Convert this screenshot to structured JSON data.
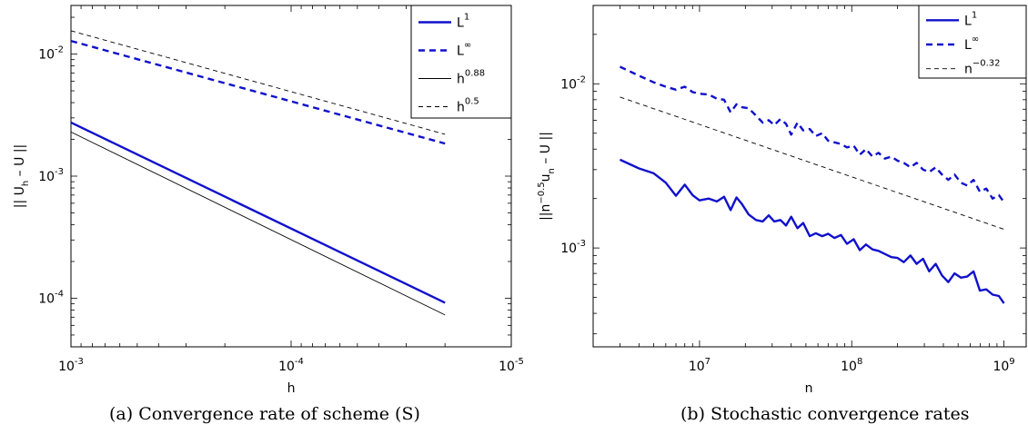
{
  "chart_data": [
    {
      "type": "line",
      "caption": "(a) Convergence rate of scheme (S)",
      "xlabel": "h",
      "ylabel": "|| U_h – U ||",
      "x_scale": "log",
      "y_scale": "log",
      "x_reversed": true,
      "xlim": [
        0.001,
        1e-05
      ],
      "ylim": [
        4e-05,
        0.025
      ],
      "x_ticks": [
        {
          "mantissa": "10",
          "exp": "-3",
          "value": 0.001
        },
        {
          "mantissa": "10",
          "exp": "-4",
          "value": 0.0001
        },
        {
          "mantissa": "10",
          "exp": "-5",
          "value": 1e-05
        }
      ],
      "y_ticks": [
        {
          "mantissa": "10",
          "exp": "-4",
          "value": 0.0001
        },
        {
          "mantissa": "10",
          "exp": "-3",
          "value": 0.001
        },
        {
          "mantissa": "10",
          "exp": "-2",
          "value": 0.01
        }
      ],
      "legend_position": "top-right",
      "series": [
        {
          "name": "L",
          "name_sup": "1",
          "color": "#1010cc",
          "style": "solid",
          "width": 2.4,
          "x": [
            0.001,
            2e-05
          ],
          "y": [
            0.00275,
            9.2e-05
          ]
        },
        {
          "name": "L",
          "name_sup": "∞",
          "color": "#1010cc",
          "style": "dashed",
          "width": 2.4,
          "x": [
            0.001,
            2e-05
          ],
          "y": [
            0.0128,
            0.00185
          ]
        },
        {
          "name": "h",
          "name_sup": "0.88",
          "color": "#000000",
          "style": "solid",
          "width": 0.9,
          "x": [
            0.001,
            2e-05
          ],
          "y": [
            0.0023,
            7.3e-05
          ]
        },
        {
          "name": "h",
          "name_sup": "0.5",
          "color": "#000000",
          "style": "dashed",
          "width": 0.9,
          "x": [
            0.001,
            2e-05
          ],
          "y": [
            0.0155,
            0.0022
          ]
        }
      ]
    },
    {
      "type": "line",
      "caption": "(b) Stochastic convergence rates",
      "xlabel": "n",
      "ylabel": "||n^{-0.5}u_n – U ||",
      "x_scale": "log",
      "y_scale": "log",
      "xlim": [
        2000000,
        1400000000
      ],
      "ylim": [
        0.00025,
        0.03
      ],
      "x_ticks": [
        {
          "mantissa": "10",
          "exp": "7",
          "value": 10000000
        },
        {
          "mantissa": "10",
          "exp": "8",
          "value": 100000000
        },
        {
          "mantissa": "10",
          "exp": "9",
          "value": 1000000000
        }
      ],
      "y_ticks": [
        {
          "mantissa": "10",
          "exp": "-3",
          "value": 0.001
        },
        {
          "mantissa": "10",
          "exp": "-2",
          "value": 0.01
        }
      ],
      "legend_position": "top-right",
      "series": [
        {
          "name": "L",
          "name_sup": "1",
          "color": "#1010cc",
          "style": "solid",
          "width": 2.4,
          "x": [
            3000000,
            4000000,
            5000000,
            6000000,
            7000000,
            8000000,
            9000000,
            10000000,
            11500000,
            13000000,
            14500000,
            16000000,
            17500000,
            19000000,
            21000000,
            23500000,
            26000000,
            28500000,
            31000000,
            34000000,
            37000000,
            40000000,
            44000000,
            48000000,
            53000000,
            58000000,
            64000000,
            70000000,
            77000000,
            85000000,
            93000000,
            103000000,
            113000000,
            124000000,
            137000000,
            150000000,
            165000000,
            182000000,
            200000000,
            220000000,
            243000000,
            267000000,
            294000000,
            323000000,
            356000000,
            392000000,
            431000000,
            474000000,
            521000000,
            574000000,
            631000000,
            695000000,
            765000000,
            842000000,
            926000000,
            1000000000
          ],
          "y": [
            0.00345,
            0.00305,
            0.00285,
            0.0025,
            0.00208,
            0.00243,
            0.0021,
            0.00195,
            0.002,
            0.00192,
            0.00205,
            0.0017,
            0.00203,
            0.00185,
            0.0016,
            0.00148,
            0.00145,
            0.00158,
            0.00145,
            0.00148,
            0.00137,
            0.00155,
            0.00132,
            0.00142,
            0.00118,
            0.00123,
            0.00118,
            0.00122,
            0.00115,
            0.0012,
            0.00106,
            0.00113,
            0.00097,
            0.00105,
            0.00098,
            0.00096,
            0.00092,
            0.00088,
            0.00087,
            0.00082,
            0.0009,
            0.0008,
            0.00086,
            0.00072,
            0.0008,
            0.00068,
            0.00062,
            0.0007,
            0.00066,
            0.00067,
            0.00072,
            0.00055,
            0.00056,
            0.00052,
            0.00051,
            0.00046
          ]
        },
        {
          "name": "L",
          "name_sup": "∞",
          "color": "#1010cc",
          "style": "dashed",
          "width": 2.4,
          "x": [
            3000000,
            4000000,
            5000000,
            6000000,
            7000000,
            8000000,
            9000000,
            10000000,
            11500000,
            13000000,
            14500000,
            16000000,
            17500000,
            19000000,
            21000000,
            23500000,
            26000000,
            28500000,
            31000000,
            34000000,
            37000000,
            40000000,
            44000000,
            48000000,
            53000000,
            58000000,
            64000000,
            70000000,
            77000000,
            85000000,
            93000000,
            103000000,
            113000000,
            124000000,
            137000000,
            150000000,
            165000000,
            182000000,
            200000000,
            220000000,
            243000000,
            267000000,
            294000000,
            323000000,
            356000000,
            392000000,
            431000000,
            474000000,
            521000000,
            574000000,
            631000000,
            695000000,
            765000000,
            842000000,
            926000000,
            1000000000
          ],
          "y": [
            0.0127,
            0.0112,
            0.0102,
            0.0096,
            0.0092,
            0.0096,
            0.0089,
            0.0087,
            0.0086,
            0.0081,
            0.008,
            0.0067,
            0.0075,
            0.0072,
            0.0071,
            0.0064,
            0.0058,
            0.006,
            0.0056,
            0.0061,
            0.0057,
            0.0049,
            0.0058,
            0.0052,
            0.0053,
            0.0048,
            0.005,
            0.0045,
            0.0044,
            0.0043,
            0.0041,
            0.0042,
            0.0037,
            0.004,
            0.0036,
            0.0038,
            0.0035,
            0.0036,
            0.0034,
            0.0033,
            0.0031,
            0.0033,
            0.003,
            0.0029,
            0.0031,
            0.0028,
            0.0026,
            0.0028,
            0.0025,
            0.0024,
            0.0026,
            0.0022,
            0.0023,
            0.002,
            0.0021,
            0.0019
          ]
        },
        {
          "name": "n",
          "name_sup": "−0.32",
          "color": "#000000",
          "style": "dashed",
          "width": 0.9,
          "x": [
            3000000,
            1000000000
          ],
          "y": [
            0.0083,
            0.0013
          ]
        }
      ]
    }
  ]
}
